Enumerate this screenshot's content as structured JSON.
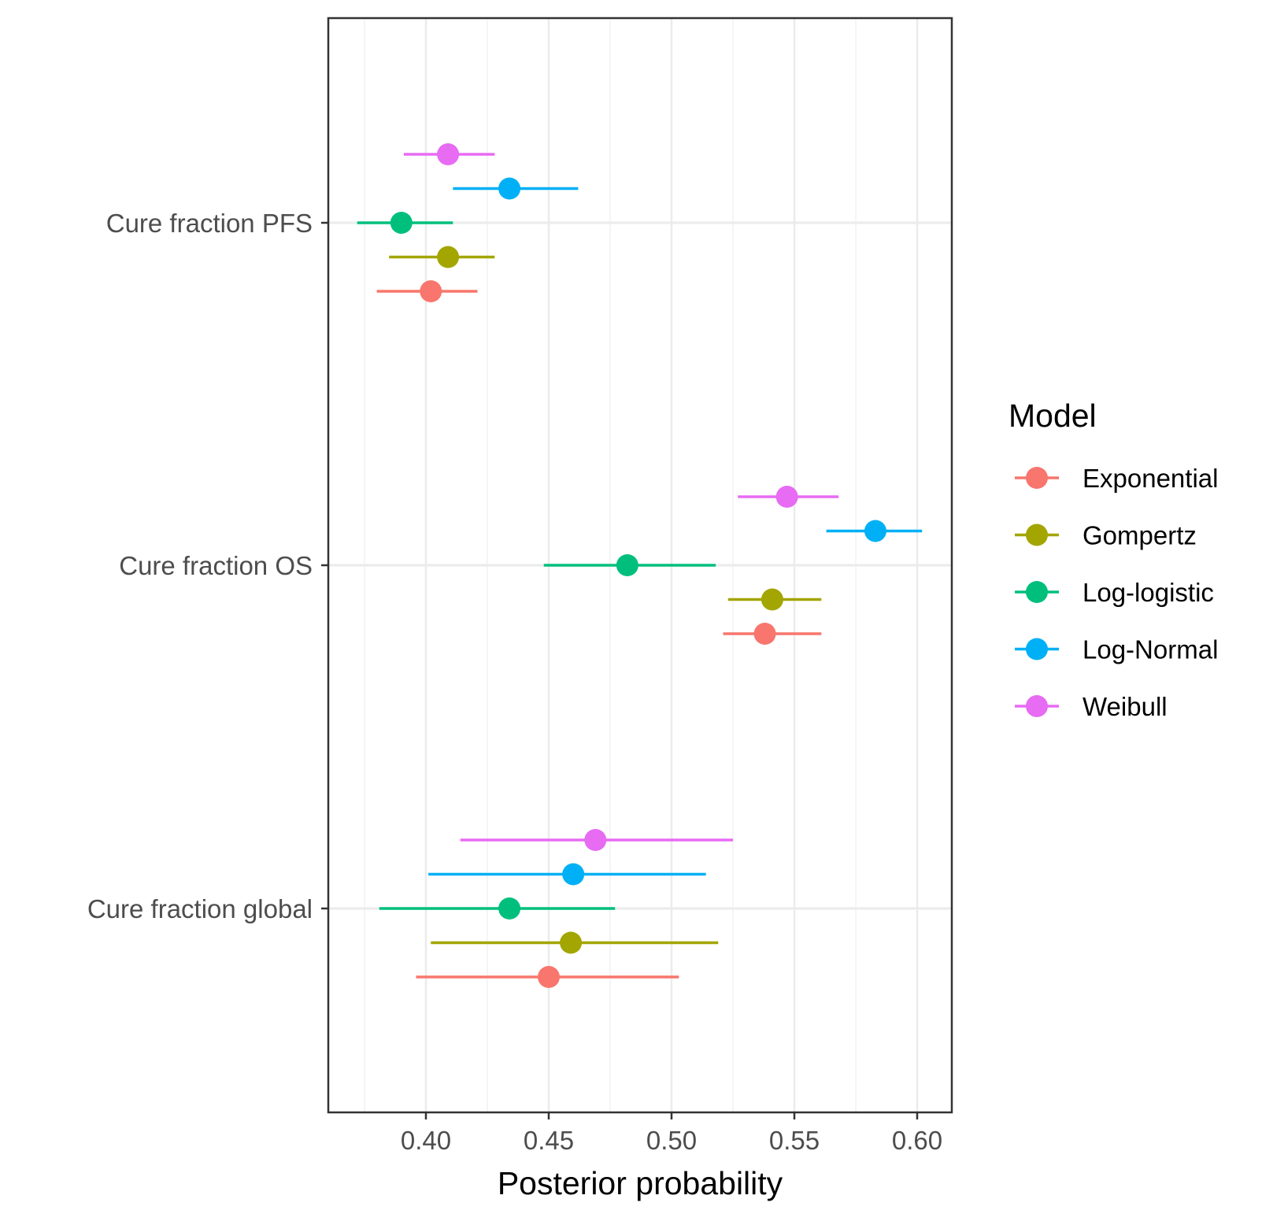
{
  "chart_data": {
    "type": "scatter",
    "subtype": "dot-and-whisker (point estimate with interval)",
    "title": "",
    "xlabel": "Posterior probability",
    "ylabel": "",
    "xlim": [
      0.36,
      0.613
    ],
    "x_ticks": [
      0.4,
      0.45,
      0.5,
      0.55,
      0.6
    ],
    "x_tick_labels": [
      "0.40",
      "0.45",
      "0.50",
      "0.55",
      "0.60"
    ],
    "categories": [
      "Cure fraction PFS",
      "Cure fraction OS",
      "Cure fraction global"
    ],
    "grid": true,
    "legend_title": "Model",
    "legend_position": "right",
    "series": [
      {
        "name": "Exponential",
        "color": "#F8766D",
        "points": [
          {
            "category": "Cure fraction PFS",
            "estimate": 0.402,
            "lower": 0.38,
            "upper": 0.421
          },
          {
            "category": "Cure fraction OS",
            "estimate": 0.538,
            "lower": 0.521,
            "upper": 0.561
          },
          {
            "category": "Cure fraction global",
            "estimate": 0.45,
            "lower": 0.396,
            "upper": 0.503
          }
        ]
      },
      {
        "name": "Gompertz",
        "color": "#A3A500",
        "points": [
          {
            "category": "Cure fraction PFS",
            "estimate": 0.409,
            "lower": 0.385,
            "upper": 0.428
          },
          {
            "category": "Cure fraction OS",
            "estimate": 0.541,
            "lower": 0.523,
            "upper": 0.561
          },
          {
            "category": "Cure fraction global",
            "estimate": 0.459,
            "lower": 0.402,
            "upper": 0.519
          }
        ]
      },
      {
        "name": "Log-logistic",
        "color": "#00BF7D",
        "points": [
          {
            "category": "Cure fraction PFS",
            "estimate": 0.39,
            "lower": 0.372,
            "upper": 0.411
          },
          {
            "category": "Cure fraction OS",
            "estimate": 0.482,
            "lower": 0.448,
            "upper": 0.518
          },
          {
            "category": "Cure fraction global",
            "estimate": 0.434,
            "lower": 0.381,
            "upper": 0.477
          }
        ]
      },
      {
        "name": "Log-Normal",
        "color": "#00B0F6",
        "points": [
          {
            "category": "Cure fraction PFS",
            "estimate": 0.434,
            "lower": 0.411,
            "upper": 0.462
          },
          {
            "category": "Cure fraction OS",
            "estimate": 0.583,
            "lower": 0.563,
            "upper": 0.602
          },
          {
            "category": "Cure fraction global",
            "estimate": 0.46,
            "lower": 0.401,
            "upper": 0.514
          }
        ]
      },
      {
        "name": "Weibull",
        "color": "#E76BF3",
        "points": [
          {
            "category": "Cure fraction PFS",
            "estimate": 0.409,
            "lower": 0.391,
            "upper": 0.428
          },
          {
            "category": "Cure fraction OS",
            "estimate": 0.547,
            "lower": 0.527,
            "upper": 0.568
          },
          {
            "category": "Cure fraction global",
            "estimate": 0.469,
            "lower": 0.414,
            "upper": 0.525
          }
        ]
      }
    ]
  },
  "style": {
    "panel_border": "#333333",
    "grid_major": "#EBEBEB",
    "grid_minor": "#F2F2F2",
    "tick_color": "#333333",
    "label_color": "#4D4D4D"
  }
}
